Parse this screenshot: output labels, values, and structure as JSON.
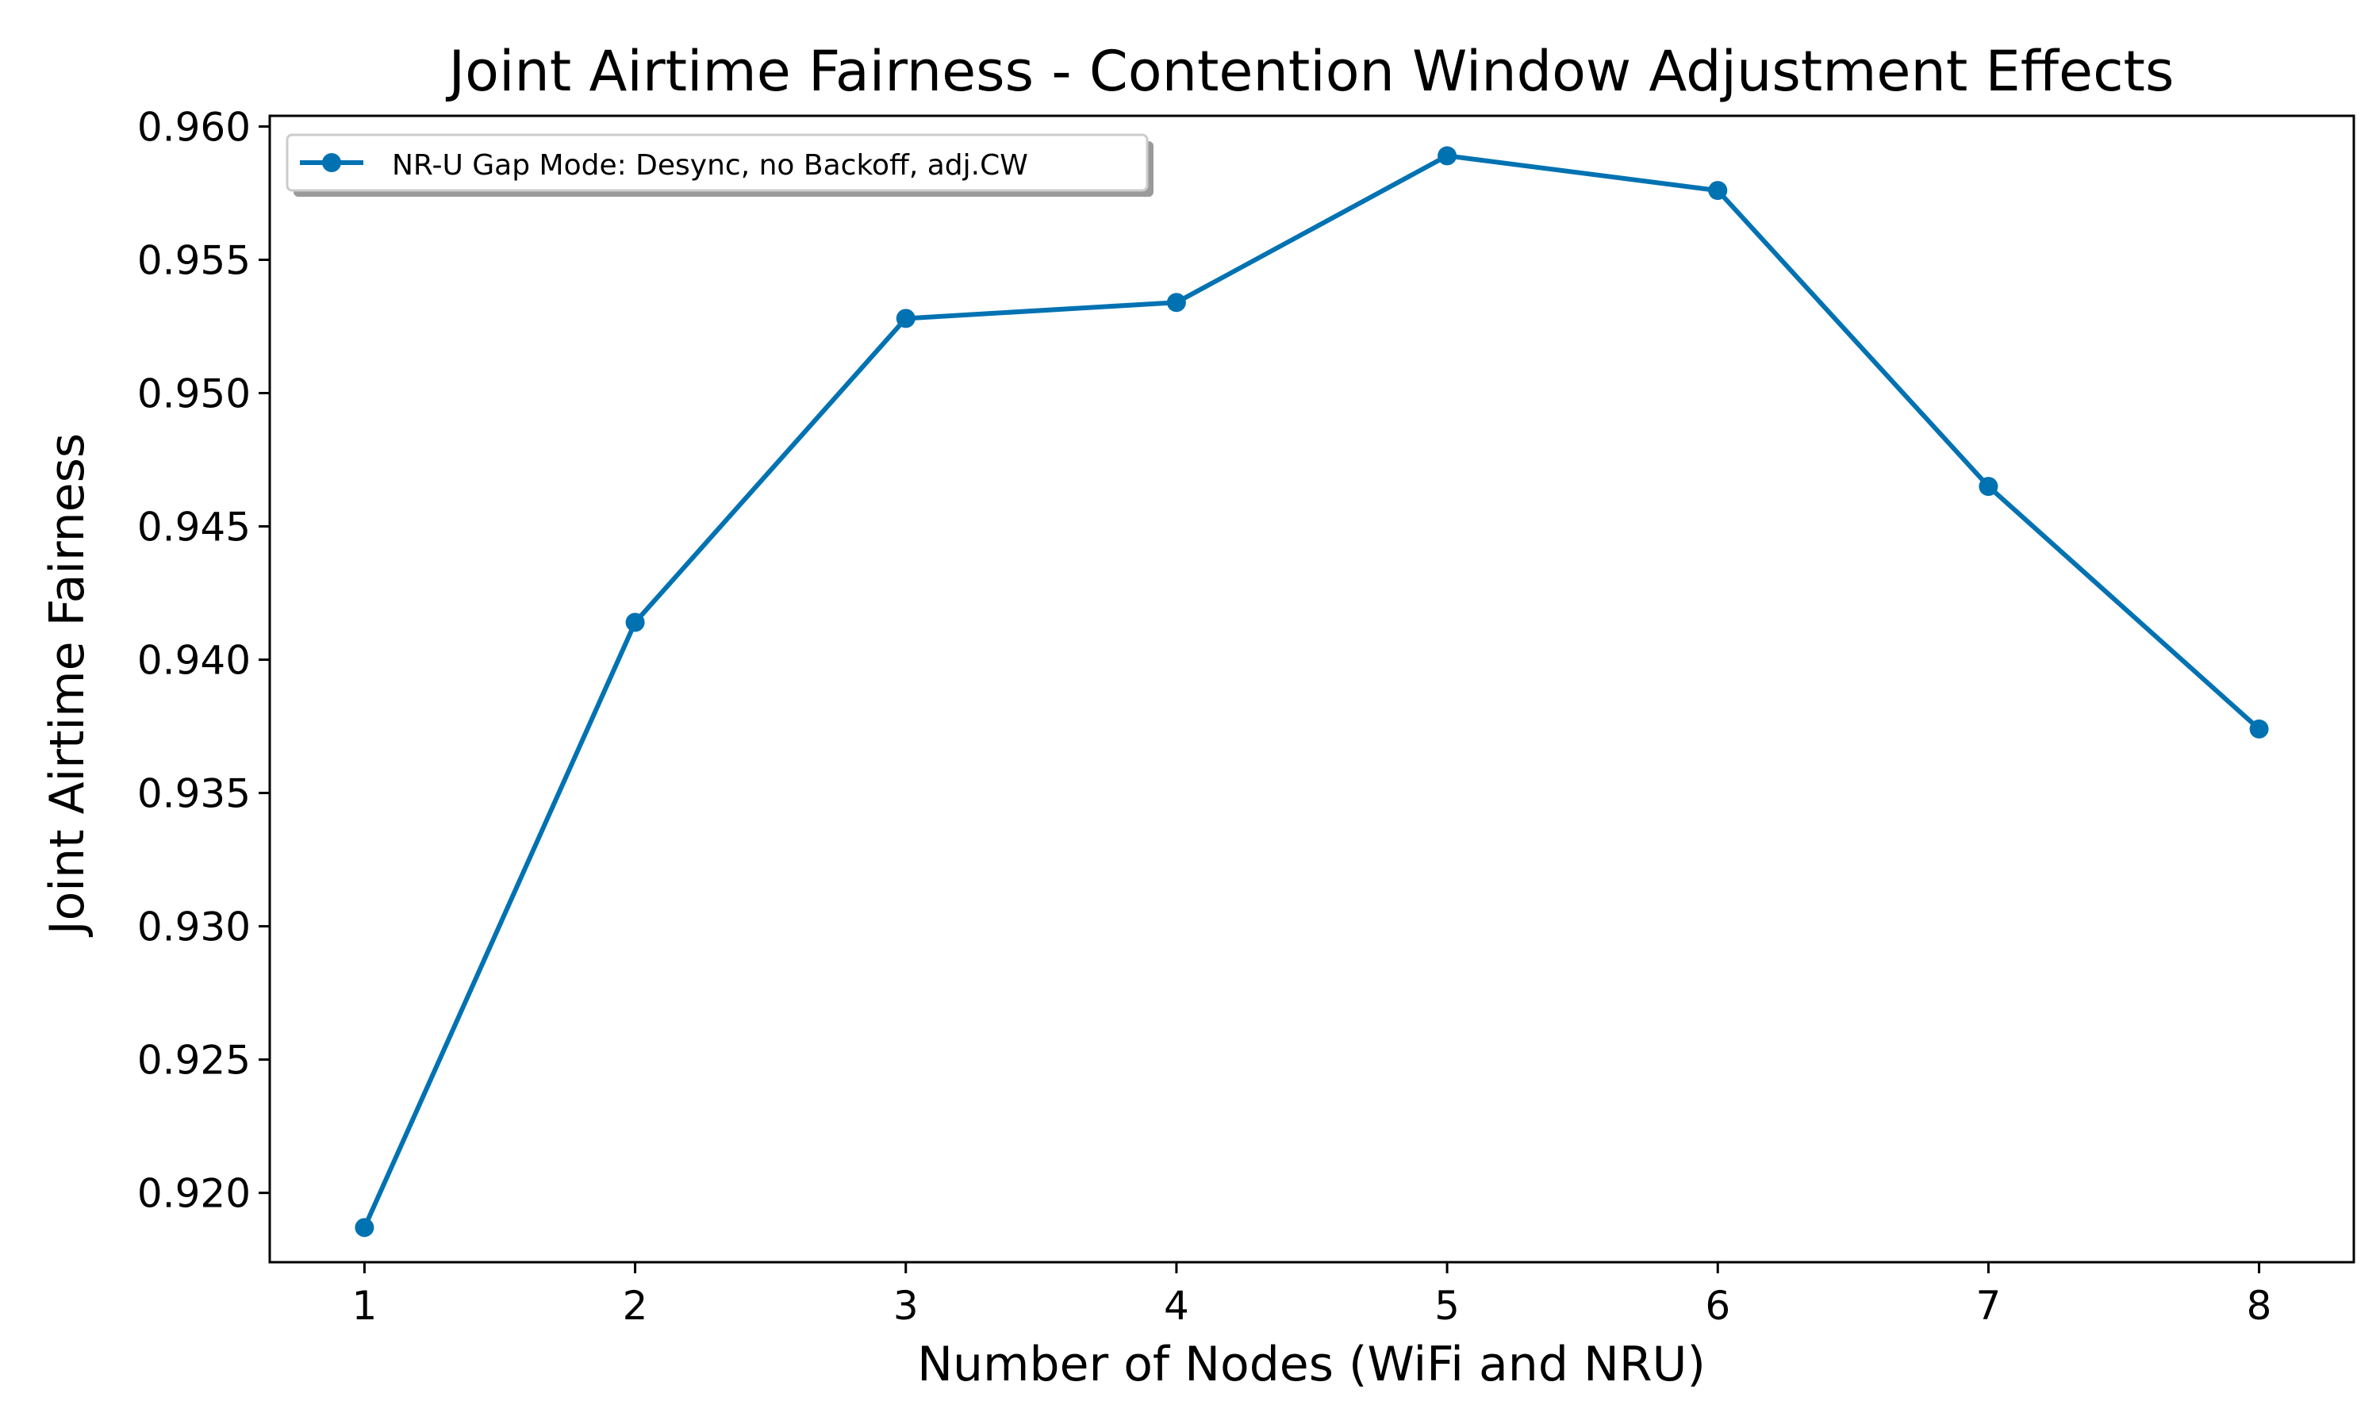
{
  "chart_data": {
    "type": "line",
    "title": "Joint Airtime Fairness - Contention Window Adjustment Effects",
    "xlabel": "Number of Nodes (WiFi and NRU)",
    "ylabel": "Joint Airtime Fairness",
    "x": [
      1,
      2,
      3,
      4,
      5,
      6,
      7,
      8
    ],
    "xticks": [
      "1",
      "2",
      "3",
      "4",
      "5",
      "6",
      "7",
      "8"
    ],
    "yticks": [
      "0.920",
      "0.925",
      "0.930",
      "0.935",
      "0.940",
      "0.945",
      "0.950",
      "0.955",
      "0.960"
    ],
    "xlim": [
      0.65,
      8.35
    ],
    "ylim": [
      0.9174,
      0.9604
    ],
    "grid": false,
    "legend_position": "upper-left",
    "series": [
      {
        "name": "NR-U Gap Mode: Desync, no Backoff, adj.CW",
        "color": "#0072B2",
        "marker": "circle",
        "values": [
          0.9187,
          0.9414,
          0.9528,
          0.9534,
          0.9589,
          0.9576,
          0.9465,
          0.9374
        ]
      }
    ]
  }
}
